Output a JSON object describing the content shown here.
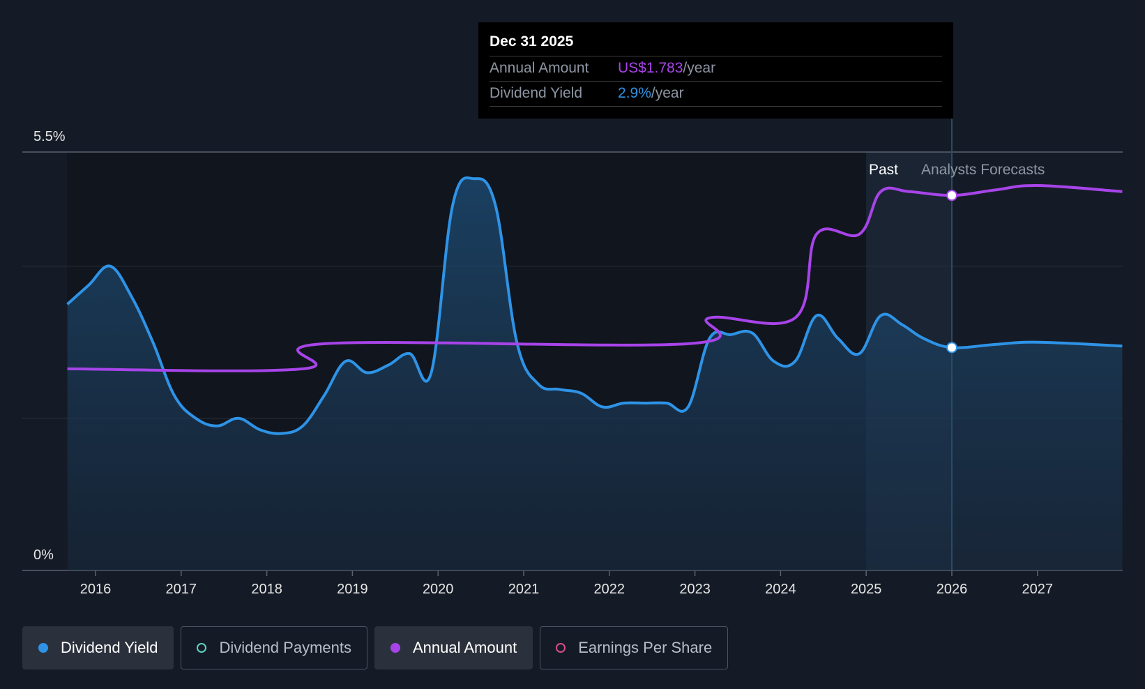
{
  "chart_data": {
    "type": "line",
    "y_axis": {
      "min": 0,
      "max": 5.5,
      "labels": [
        "5.5%",
        "0%"
      ],
      "grid": true
    },
    "x_axis": {
      "ticks": [
        "2016",
        "2017",
        "2018",
        "2019",
        "2020",
        "2021",
        "2022",
        "2023",
        "2024",
        "2025",
        "2026",
        "2027"
      ],
      "min": 2015.67,
      "max": 2027.99
    },
    "zones": {
      "past_label": "Past",
      "forecast_label": "Analysts Forecasts",
      "forecast_start": 2025.5
    },
    "series": [
      {
        "name": "Dividend Yield",
        "color": "#2e93e6",
        "unit": "%",
        "points": [
          [
            2015.67,
            3.5
          ],
          [
            2015.92,
            3.75
          ],
          [
            2016.17,
            4.0
          ],
          [
            2016.42,
            3.6
          ],
          [
            2016.67,
            3.0
          ],
          [
            2016.92,
            2.3
          ],
          [
            2017.17,
            2.0
          ],
          [
            2017.42,
            1.9
          ],
          [
            2017.67,
            2.0
          ],
          [
            2017.92,
            1.85
          ],
          [
            2018.17,
            1.8
          ],
          [
            2018.42,
            1.9
          ],
          [
            2018.67,
            2.3
          ],
          [
            2018.92,
            2.75
          ],
          [
            2019.17,
            2.6
          ],
          [
            2019.42,
            2.7
          ],
          [
            2019.67,
            2.85
          ],
          [
            2019.92,
            2.6
          ],
          [
            2020.17,
            4.8
          ],
          [
            2020.42,
            5.15
          ],
          [
            2020.67,
            4.8
          ],
          [
            2020.92,
            3.0
          ],
          [
            2021.17,
            2.45
          ],
          [
            2021.42,
            2.38
          ],
          [
            2021.67,
            2.33
          ],
          [
            2021.92,
            2.15
          ],
          [
            2022.17,
            2.2
          ],
          [
            2022.42,
            2.2
          ],
          [
            2022.67,
            2.2
          ],
          [
            2022.92,
            2.15
          ],
          [
            2023.17,
            3.05
          ],
          [
            2023.42,
            3.1
          ],
          [
            2023.67,
            3.12
          ],
          [
            2023.92,
            2.75
          ],
          [
            2024.17,
            2.75
          ],
          [
            2024.42,
            3.35
          ],
          [
            2024.67,
            3.05
          ],
          [
            2024.92,
            2.85
          ],
          [
            2025.17,
            3.35
          ],
          [
            2025.42,
            3.23
          ],
          [
            2025.67,
            3.05
          ],
          [
            2026.0,
            2.93
          ],
          [
            2026.5,
            2.97
          ],
          [
            2027.0,
            3.0
          ],
          [
            2027.99,
            2.95
          ]
        ]
      },
      {
        "name": "Annual Amount",
        "color": "#a744e9",
        "points": [
          [
            2015.67,
            2.65
          ],
          [
            2018.42,
            2.65
          ],
          [
            2018.67,
            2.98
          ],
          [
            2022.92,
            2.98
          ],
          [
            2023.17,
            3.32
          ],
          [
            2024.17,
            3.32
          ],
          [
            2024.42,
            4.42
          ],
          [
            2024.92,
            4.42
          ],
          [
            2025.17,
            4.98
          ],
          [
            2025.5,
            4.98
          ],
          [
            2026.0,
            4.93
          ],
          [
            2026.5,
            5.0
          ],
          [
            2027.0,
            5.06
          ],
          [
            2027.99,
            4.98
          ]
        ]
      }
    ],
    "marker_x": 2026.0
  },
  "tooltip": {
    "date": "Dec 31 2025",
    "rows": [
      {
        "label": "Annual Amount",
        "value": "US$1.783",
        "unit": "/year",
        "color": "#a744e9"
      },
      {
        "label": "Dividend Yield",
        "value": "2.9%",
        "unit": "/year",
        "color": "#2e93e6"
      }
    ]
  },
  "legend": [
    {
      "label": "Dividend Yield",
      "active": true,
      "color": "#2e93e6",
      "filled": true
    },
    {
      "label": "Dividend Payments",
      "active": false,
      "color": "#5fd3c4",
      "filled": false
    },
    {
      "label": "Annual Amount",
      "active": true,
      "color": "#a744e9",
      "filled": true
    },
    {
      "label": "Earnings Per Share",
      "active": false,
      "color": "#d64f86",
      "filled": false
    }
  ]
}
